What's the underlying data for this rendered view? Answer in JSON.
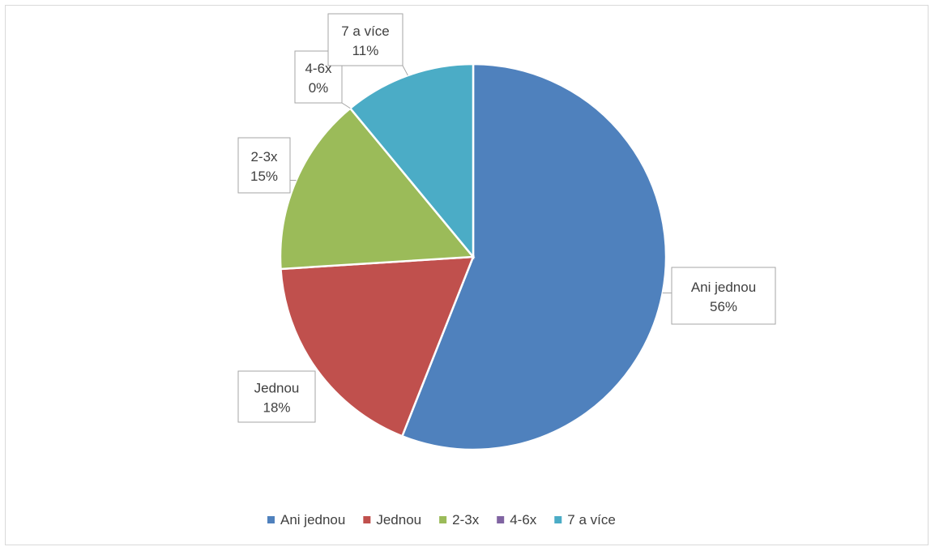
{
  "chart_data": {
    "type": "pie",
    "categories": [
      "Ani jednou",
      "Jednou",
      "2-3x",
      "4-6x",
      "7 a více"
    ],
    "values": [
      56,
      18,
      15,
      0,
      11
    ],
    "labels": [
      "56%",
      "18%",
      "15%",
      "0%",
      "11%"
    ],
    "colors": [
      "#4f81bd",
      "#c0504d",
      "#9bbb59",
      "#8064a2",
      "#4bacc6"
    ],
    "title": "",
    "legend_position": "bottom"
  }
}
